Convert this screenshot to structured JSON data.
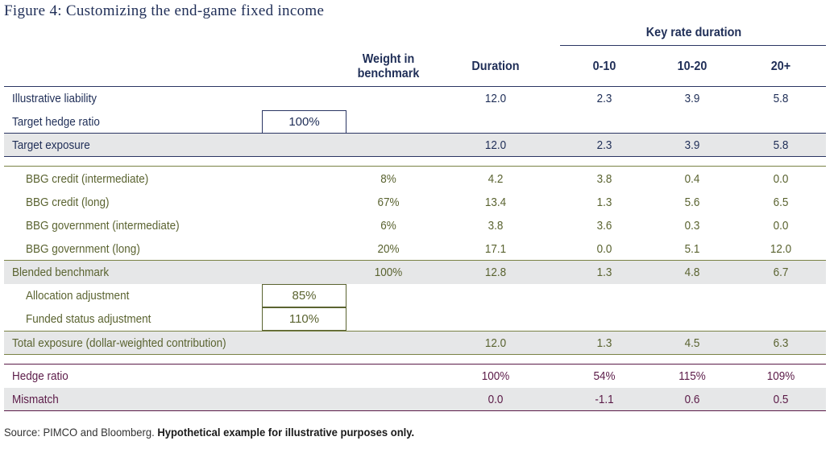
{
  "title": "Figure 4: Customizing the end-game fixed income",
  "key_rate_header": "Key rate duration",
  "columns": {
    "weight_l1": "Weight in",
    "weight_l2": "benchmark",
    "duration": "Duration",
    "k1": "0-10",
    "k2": "10-20",
    "k3": "20+"
  },
  "rows": {
    "illustrative_liability": {
      "label": "Illustrative liability",
      "duration": "12.0",
      "k1": "2.3",
      "k2": "3.9",
      "k3": "5.8"
    },
    "target_hedge_ratio": {
      "label": "Target hedge ratio",
      "input": "100%"
    },
    "target_exposure": {
      "label": "Target exposure",
      "duration": "12.0",
      "k1": "2.3",
      "k2": "3.9",
      "k3": "5.8"
    },
    "bbg_credit_int": {
      "label": "BBG credit (intermediate)",
      "weight": "8%",
      "duration": "4.2",
      "k1": "3.8",
      "k2": "0.4",
      "k3": "0.0"
    },
    "bbg_credit_long": {
      "label": "BBG credit (long)",
      "weight": "67%",
      "duration": "13.4",
      "k1": "1.3",
      "k2": "5.6",
      "k3": "6.5"
    },
    "bbg_gov_int": {
      "label": "BBG government (intermediate)",
      "weight": "6%",
      "duration": "3.8",
      "k1": "3.6",
      "k2": "0.3",
      "k3": "0.0"
    },
    "bbg_gov_long": {
      "label": "BBG government (long)",
      "weight": "20%",
      "duration": "17.1",
      "k1": "0.0",
      "k2": "5.1",
      "k3": "12.0"
    },
    "blended_benchmark": {
      "label": "Blended benchmark",
      "weight": "100%",
      "duration": "12.8",
      "k1": "1.3",
      "k2": "4.8",
      "k3": "6.7"
    },
    "allocation_adjustment": {
      "label": "Allocation adjustment",
      "input": "85%"
    },
    "funded_status_adjustment": {
      "label": "Funded status adjustment",
      "input": "110%"
    },
    "total_exposure": {
      "label": "Total exposure (dollar-weighted contribution)",
      "duration": "12.0",
      "k1": "1.3",
      "k2": "4.5",
      "k3": "6.3"
    },
    "hedge_ratio": {
      "label": "Hedge ratio",
      "duration": "100%",
      "k1": "54%",
      "k2": "115%",
      "k3": "109%"
    },
    "mismatch": {
      "label": "Mismatch",
      "duration": "0.0",
      "k1": "-1.1",
      "k2": "0.6",
      "k3": "0.5"
    }
  },
  "source": {
    "plain": "Source: PIMCO and Bloomberg. ",
    "bold": "Hypothetical example for illustrative purposes only."
  },
  "colors": {
    "navy": "#1f2e57",
    "olive": "#5a6330",
    "plum": "#5b1b48",
    "band": "#e6e7e8"
  }
}
